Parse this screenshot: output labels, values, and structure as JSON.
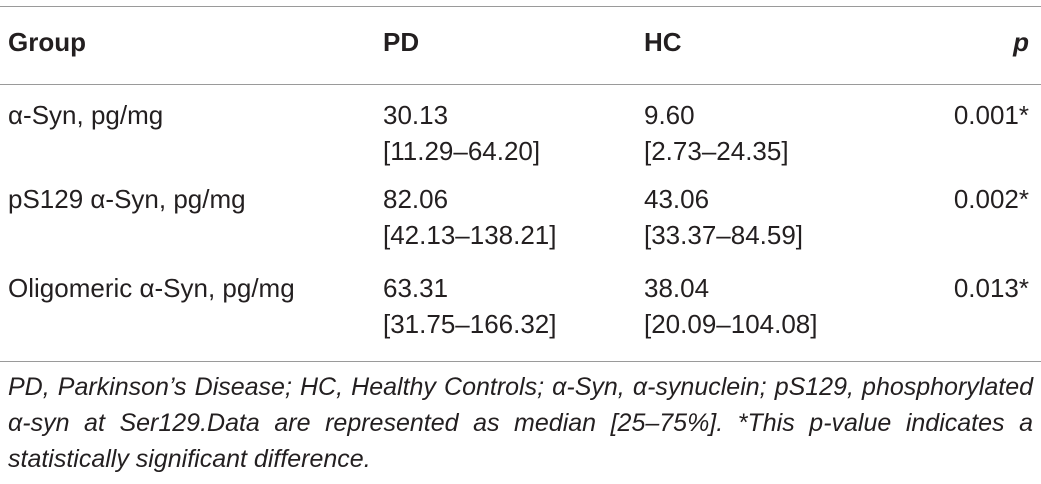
{
  "table": {
    "headers": {
      "group": "Group",
      "pd": "PD",
      "hc": "HC",
      "p": "p"
    },
    "rows": [
      {
        "group": "α-Syn, pg/mg",
        "pd_median": "30.13",
        "pd_iqr": "[11.29–64.20]",
        "hc_median": "9.60",
        "hc_iqr": "[2.73–24.35]",
        "p": "0.001*"
      },
      {
        "group": "pS129 α-Syn, pg/mg",
        "pd_median": "82.06",
        "pd_iqr": "[42.13–138.21]",
        "hc_median": "43.06",
        "hc_iqr": "[33.37–84.59]",
        "p": "0.002*"
      },
      {
        "group": "Oligomeric α-Syn, pg/mg",
        "pd_median": "63.31",
        "pd_iqr": "[31.75–166.32]",
        "hc_median": "38.04",
        "hc_iqr": "[20.09–104.08]",
        "p": "0.013*"
      }
    ],
    "footnote": "PD, Parkinson’s Disease; HC, Healthy Controls; α-Syn, α-synuclein; pS129, phosphorylated α-syn at Ser129.Data are represented as median [25–75%]. *This p-value indicates a statistically significant difference."
  }
}
